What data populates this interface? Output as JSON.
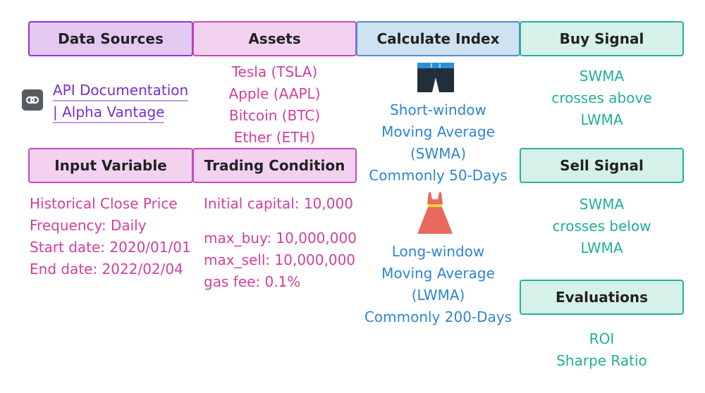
{
  "headers": {
    "data_sources": "Data Sources",
    "assets": "Assets",
    "calculate_index": "Calculate Index",
    "buy_signal": "Buy Signal",
    "input_variable": "Input Variable",
    "trading_condition": "Trading Condition",
    "sell_signal": "Sell Signal",
    "evaluations": "Evaluations"
  },
  "data_sources": {
    "link_line1": "API Documentation",
    "link_line2": "| Alpha Vantage",
    "icon": "link-icon"
  },
  "assets": [
    "Tesla (TSLA)",
    "Apple (AAPL)",
    "Bitcoin (BTC)",
    "Ether (ETH)"
  ],
  "calculate_index": {
    "short_icon": "shorts-icon",
    "short": [
      "Short-window",
      "Moving Average",
      "(SWMA)",
      "Commonly 50-Days"
    ],
    "long_icon": "dress-icon",
    "long": [
      "Long-window",
      "Moving Average",
      "(LWMA)",
      "Commonly 200-Days"
    ]
  },
  "buy_signal": [
    "SWMA",
    "crosses above",
    "LWMA"
  ],
  "sell_signal": [
    "SWMA",
    "crosses below",
    "LWMA"
  ],
  "evaluations": [
    "ROI",
    "Sharpe Ratio"
  ],
  "input_variable": [
    "Historical Close Price",
    "Frequency: Daily",
    "Start date: 2020/01/01",
    "End date: 2022/02/04"
  ],
  "trading_condition": {
    "capital": "Initial capital: 10,000",
    "limits": [
      "max_buy: 10,000,000",
      "max_sell: 10,000,000",
      "gas fee: 0.1%"
    ]
  },
  "colors": {
    "purple": "#9a2fc7",
    "pink": "#d0409e",
    "blue": "#2f84d4",
    "teal": "#1fb092"
  }
}
